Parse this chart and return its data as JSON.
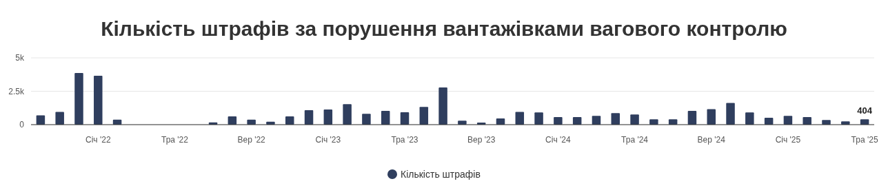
{
  "chart_data": {
    "type": "bar",
    "title": "Кількість штрафів за порушення вантажівками вагового контролю",
    "categories": [
      null,
      null,
      null,
      "Січ '22",
      null,
      null,
      null,
      "Тра '22",
      null,
      null,
      null,
      "Вер '22",
      null,
      null,
      null,
      "Січ '23",
      null,
      null,
      null,
      "Тра '23",
      null,
      null,
      null,
      "Вер '23",
      null,
      null,
      null,
      "Січ '24",
      null,
      null,
      null,
      "Тра '24",
      null,
      null,
      null,
      "Вер '24",
      null,
      null,
      null,
      "Січ '25",
      null,
      null,
      null,
      "Тра '25"
    ],
    "series": [
      {
        "name": "Кількість штрафів",
        "color": "#2f3e5e",
        "values": [
          700,
          960,
          3860,
          3660,
          370,
          null,
          null,
          null,
          null,
          170,
          620,
          370,
          220,
          620,
          1080,
          1130,
          1530,
          810,
          1030,
          930,
          1330,
          2780,
          300,
          150,
          460,
          960,
          910,
          570,
          570,
          660,
          860,
          760,
          400,
          400,
          1030,
          1160,
          1620,
          910,
          520,
          660,
          570,
          350,
          250,
          404
        ],
        "value_labels": [
          null,
          null,
          null,
          null,
          null,
          null,
          null,
          null,
          null,
          null,
          null,
          null,
          null,
          null,
          null,
          null,
          null,
          null,
          null,
          null,
          null,
          null,
          null,
          null,
          null,
          null,
          null,
          null,
          null,
          null,
          null,
          null,
          null,
          null,
          null,
          null,
          null,
          null,
          null,
          null,
          null,
          null,
          null,
          "404"
        ]
      }
    ],
    "ylim": [
      0,
      5000
    ],
    "yticks": [
      0,
      {
        "value": 2500,
        "label": "2.5k"
      },
      {
        "value": 5000,
        "label": "5k"
      }
    ],
    "grid": "y",
    "legend": "bottom"
  }
}
